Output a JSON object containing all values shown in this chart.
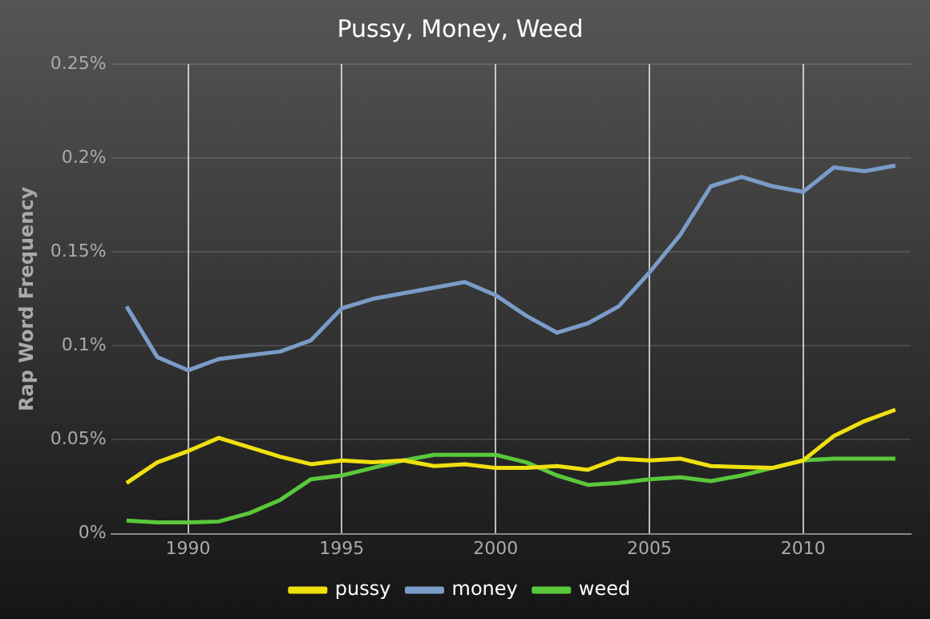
{
  "chart_data": {
    "type": "line",
    "title": "Pussy, Money, Weed",
    "ylabel": "Rap Word Frequency",
    "x": [
      1988,
      1989,
      1990,
      1991,
      1992,
      1993,
      1994,
      1995,
      1996,
      1997,
      1998,
      1999,
      2000,
      2001,
      2002,
      2003,
      2004,
      2005,
      2006,
      2007,
      2008,
      2009,
      2010,
      2011,
      2012,
      2013
    ],
    "series": [
      {
        "name": "pussy",
        "color": "#f0e010",
        "values": [
          0.027,
          0.038,
          0.044,
          0.051,
          0.046,
          0.041,
          0.037,
          0.039,
          0.038,
          0.039,
          0.036,
          0.037,
          0.035,
          0.035,
          0.036,
          0.034,
          0.04,
          0.039,
          0.04,
          0.036,
          0.0355,
          0.035,
          0.039,
          0.052,
          0.06,
          0.066
        ]
      },
      {
        "name": "money",
        "color": "#7a9cc8",
        "values": [
          0.121,
          0.094,
          0.087,
          0.093,
          0.095,
          0.097,
          0.103,
          0.12,
          0.125,
          0.128,
          0.131,
          0.134,
          0.127,
          0.116,
          0.107,
          0.112,
          0.121,
          0.139,
          0.159,
          0.185,
          0.19,
          0.185,
          0.182,
          0.195,
          0.193,
          0.196
        ]
      },
      {
        "name": "weed",
        "color": "#5ac83a",
        "values": [
          0.007,
          0.006,
          0.006,
          0.0065,
          0.011,
          0.018,
          0.029,
          0.031,
          0.035,
          0.039,
          0.042,
          0.042,
          0.042,
          0.038,
          0.031,
          0.026,
          0.027,
          0.029,
          0.03,
          0.028,
          0.031,
          0.035,
          0.039,
          0.04,
          0.04,
          0.04
        ]
      }
    ],
    "xlim": [
      1987.5,
      2013.5
    ],
    "xticks": [
      1990,
      1995,
      2000,
      2005,
      2010
    ],
    "ylim": [
      0,
      0.25
    ],
    "yticks": [
      {
        "value": 0,
        "label": "0%"
      },
      {
        "value": 0.05,
        "label": "0.05%"
      },
      {
        "value": 0.1,
        "label": "0.1%"
      },
      {
        "value": 0.15,
        "label": "0.15%"
      },
      {
        "value": 0.2,
        "label": "0.2%"
      },
      {
        "value": 0.25,
        "label": "0.25%"
      }
    ],
    "grid": true,
    "legend": "bottom",
    "marker": "none",
    "line_style": "solid"
  }
}
